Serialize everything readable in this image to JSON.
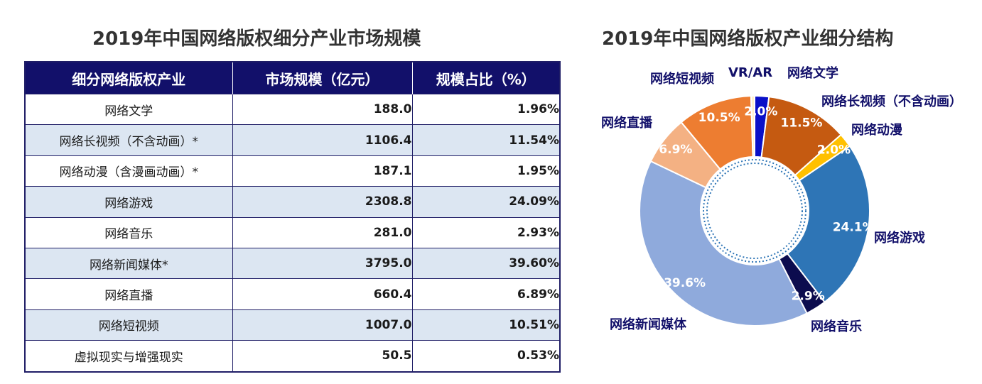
{
  "table_title": "2019年中国网络版权细分产业市场规模",
  "chart_title": "2019年中国网络版权产业细分结构",
  "table": {
    "headers": [
      "细分网络版权产业",
      "市场规模（亿元）",
      "规模占比（%）"
    ],
    "rows": [
      {
        "name": "网络文学",
        "value": "188.0",
        "pct": "1.96%"
      },
      {
        "name": "网络长视频（不含动画）*",
        "value": "1106.4",
        "pct": "11.54%"
      },
      {
        "name": "网络动漫（含漫画动画）*",
        "value": "187.1",
        "pct": "1.95%"
      },
      {
        "name": "网络游戏",
        "value": "2308.8",
        "pct": "24.09%"
      },
      {
        "name": "网络音乐",
        "value": "281.0",
        "pct": "2.93%"
      },
      {
        "name": "网络新闻媒体*",
        "value": "3795.0",
        "pct": "39.60%"
      },
      {
        "name": "网络直播",
        "value": "660.4",
        "pct": "6.89%"
      },
      {
        "name": "网络短视频",
        "value": "1007.0",
        "pct": "10.51%"
      },
      {
        "name": "虚拟现实与增强现实",
        "value": "50.5",
        "pct": "0.53%"
      }
    ]
  },
  "chart_data": {
    "type": "pie",
    "title": "2019年中国网络版权产业细分结构",
    "categories": [
      "网络文学",
      "网络长视频（不含动画）",
      "网络动漫",
      "网络游戏",
      "网络音乐",
      "网络新闻媒体",
      "网络直播",
      "网络短视频",
      "VR/AR"
    ],
    "values": [
      2.0,
      11.5,
      2.0,
      24.1,
      2.9,
      39.6,
      6.9,
      10.5,
      0.5
    ],
    "value_labels": [
      "2.0%",
      "11.5%",
      "2.0%",
      "24.1%",
      "2.9%",
      "39.6%",
      "6.9%",
      "10.5%",
      ""
    ],
    "colors": [
      "#0a10c8",
      "#c55a11",
      "#ffc000",
      "#2e75b6",
      "#0c0c4e",
      "#8faadc",
      "#f4b183",
      "#ed7d31",
      "#fff2cc"
    ],
    "donut": true
  }
}
